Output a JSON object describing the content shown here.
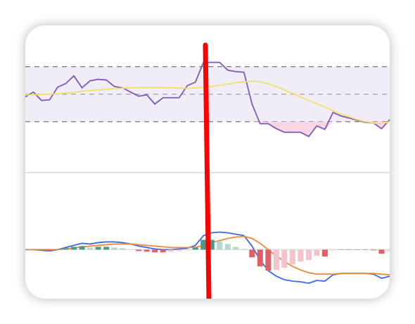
{
  "chart_data": [
    {
      "type": "line",
      "ylim": [
        -7,
        100
      ],
      "yticks": [
        70,
        50,
        30
      ],
      "band": [
        30,
        70
      ],
      "band_color": "#f0ecf8",
      "oversold_color": "#f8d6e4",
      "series": [
        {
          "color": "#7e5bb8",
          "values": [
            48,
            51.5,
            45.4,
            45.9,
            55.1,
            57.7,
            63.3,
            54.6,
            59.7,
            60.8,
            60.3,
            55.6,
            54.6,
            51.5,
            48.5,
            49.5,
            42.8,
            47.4,
            47.4,
            47.4,
            56.2,
            58.7,
            73.1,
            73.1,
            73.1,
            67.4,
            66.4,
            65.9,
            42.8,
            28.5,
            28.5,
            24.9,
            22.3,
            22.3,
            22.3,
            19.2,
            26.9,
            24.4,
            36.7,
            34.1,
            32.6,
            31,
            29.5,
            29,
            24.9,
            31.5
          ]
        },
        {
          "color": "#f2e06a",
          "values": [
            49.5,
            49.5,
            49.8,
            50,
            50.3,
            50.8,
            51.3,
            52,
            52.6,
            53,
            53.5,
            54,
            54.3,
            54.6,
            54.8,
            54.8,
            54.8,
            54.8,
            54.6,
            54.4,
            54.2,
            54.5,
            55,
            55.6,
            56.4,
            57.3,
            58.2,
            59,
            59.5,
            59,
            57.5,
            55.5,
            53,
            50.5,
            48,
            45.5,
            43,
            40.5,
            38,
            35.5,
            33.5,
            31.5,
            30,
            29,
            28.5,
            30
          ]
        }
      ]
    },
    {
      "type": "macd",
      "ylim": [
        -7,
        11
      ],
      "yticks": [
        0
      ],
      "hist_colors": {
        "up_strong": "#4a9a8a",
        "up_weak": "#b5d8d2",
        "down_strong": "#e06068",
        "down_weak": "#f3c4cc"
      },
      "series": [
        {
          "color": "#3e68e0",
          "values": [
            0,
            0,
            -0.1,
            -0.2,
            0,
            0.3,
            0.6,
            0.9,
            0.8,
            1,
            1.1,
            1.1,
            1,
            0.8,
            0.5,
            0.3,
            0.1,
            0,
            0,
            0.1,
            0.2,
            0.6,
            2,
            2.4,
            2.5,
            2.4,
            2.2,
            2,
            0.5,
            -1.5,
            -3,
            -3.8,
            -4.3,
            -4.5,
            -4.6,
            -4.8,
            -4.4,
            -4.5,
            -3.6,
            -3.4,
            -3.4,
            -3.4,
            -3.4,
            -3.5,
            -4.1,
            -3.8
          ]
        },
        {
          "color": "#ee8a3c",
          "values": [
            0,
            0,
            0,
            0,
            0,
            0.1,
            0.2,
            0.4,
            0.5,
            0.6,
            0.7,
            0.8,
            0.8,
            0.8,
            0.7,
            0.6,
            0.5,
            0.4,
            0.3,
            0.3,
            0.3,
            0.3,
            0.6,
            1,
            1.3,
            1.6,
            1.8,
            1.9,
            1.6,
            0.9,
            0,
            -0.9,
            -1.7,
            -2.4,
            -2.9,
            -3.3,
            -3.5,
            -3.5,
            -3.5,
            -3.4,
            -3.4,
            -3.4,
            -3.4,
            -3.4,
            -3.5,
            -3.6
          ]
        },
        {
          "type": "bar",
          "values": [
            0,
            0,
            -0.1,
            -0.2,
            0,
            0.2,
            0.4,
            0.5,
            0.3,
            0.4,
            0.4,
            0.3,
            0.2,
            0,
            -0.2,
            -0.3,
            -0.4,
            -0.4,
            -0.3,
            -0.2,
            -0.1,
            0.3,
            1.4,
            1.4,
            1.2,
            0.8,
            0.4,
            0.1,
            -1.1,
            -2.4,
            -3,
            -2.9,
            -2.6,
            -2.1,
            -1.7,
            -1.5,
            -0.9,
            -1,
            -0.1,
            0,
            0,
            0,
            0,
            -0.1,
            -0.6,
            -0.2
          ]
        }
      ]
    }
  ]
}
